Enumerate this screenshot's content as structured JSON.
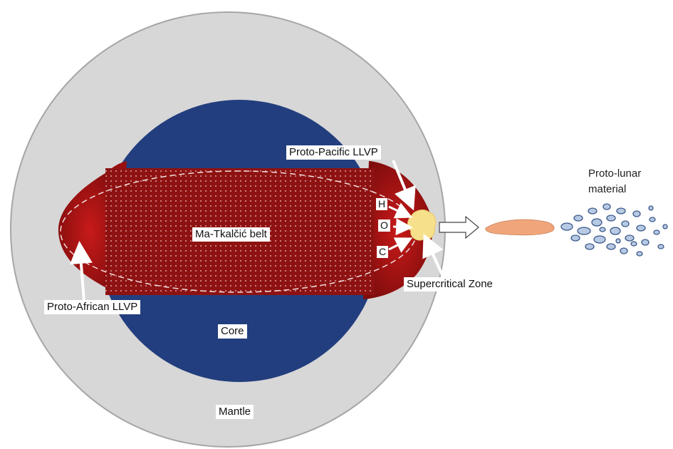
{
  "labels": {
    "mantle": "Mantle",
    "core": "Core",
    "belt": "Ma-Tkalčić belt",
    "proto_pacific": "Proto-Pacific LLVP",
    "proto_african": "Proto-African LLVP",
    "supercritical": "Supercritical Zone",
    "h": "H",
    "o": "O",
    "c": "C",
    "proto_lunar_line1": "Proto-lunar",
    "proto_lunar_line2": "material"
  },
  "colors": {
    "mantle": "#d7d7d7",
    "mantle_edge": "#a6a6a6",
    "core": "#223e7e",
    "belt": "#8e1212",
    "llvp": "#b01414",
    "supercritical": "#f7e08c",
    "plume": "#f0a57a",
    "droplet": "#b7c9e3",
    "droplet_edge": "#3c5a8a"
  }
}
